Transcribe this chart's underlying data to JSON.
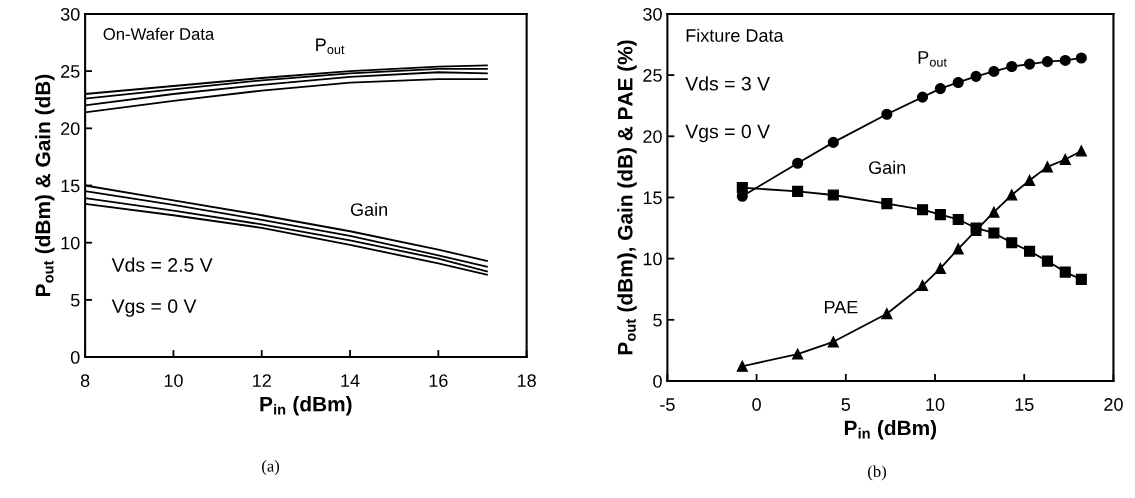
{
  "chart_data": [
    {
      "type": "line",
      "xlabel": "P$_{in}$ (dBm)",
      "ylabel": "P$_{out}$ (dBm) & Gain (dB)",
      "x": [
        8,
        10,
        12,
        14,
        16,
        17.1
      ],
      "xlim": [
        8,
        18
      ],
      "xticks": [
        8,
        10,
        12,
        14,
        16,
        18
      ],
      "ylim": [
        0,
        30
      ],
      "yticks": [
        0,
        5,
        10,
        15,
        20,
        25,
        30
      ],
      "grid": false,
      "series": [
        {
          "color": "#000000",
          "values": [
            23.0,
            23.7,
            24.4,
            25.0,
            25.4,
            25.5
          ]
        },
        {
          "color": "#000000",
          "values": [
            22.6,
            23.4,
            24.2,
            24.8,
            25.2,
            25.2
          ]
        },
        {
          "color": "#000000",
          "values": [
            22.0,
            23.0,
            23.8,
            24.5,
            24.9,
            24.8
          ]
        },
        {
          "color": "#000000",
          "values": [
            21.4,
            22.4,
            23.3,
            24.0,
            24.3,
            24.3
          ]
        },
        {
          "color": "#000000",
          "values": [
            15.0,
            13.7,
            12.4,
            11.0,
            9.4,
            8.4
          ]
        },
        {
          "color": "#000000",
          "values": [
            14.5,
            13.3,
            12.0,
            10.6,
            8.9,
            7.9
          ]
        },
        {
          "color": "#000000",
          "values": [
            13.9,
            12.8,
            11.6,
            10.2,
            8.6,
            7.5
          ]
        },
        {
          "color": "#000000",
          "values": [
            13.4,
            12.4,
            11.3,
            9.8,
            8.2,
            7.2
          ]
        }
      ],
      "annotations": [
        "On-Wafer Data",
        "P$_{out}$",
        "Gain",
        "Vds = 2.5 V",
        "Vgs = 0 V",
        "(a)"
      ]
    },
    {
      "type": "line",
      "xlabel": "P$_{in}$ (dBm)",
      "ylabel": "P$_{out}$ (dBm), Gain (dB) & PAE (%)",
      "x": [
        -0.8,
        2.3,
        4.3,
        7.3,
        9.3,
        10.3,
        11.3,
        12.3,
        13.3,
        14.3,
        15.3,
        16.3,
        17.3,
        18.2
      ],
      "xlim": [
        -5,
        20
      ],
      "xticks": [
        -5,
        0,
        5,
        10,
        15,
        20
      ],
      "ylim": [
        0,
        30
      ],
      "yticks": [
        0,
        5,
        10,
        15,
        20,
        25,
        30
      ],
      "grid": false,
      "series": [
        {
          "color": "#000000",
          "marker": "circle",
          "values": [
            15.1,
            17.8,
            19.5,
            21.8,
            23.2,
            23.9,
            24.4,
            24.9,
            25.3,
            25.7,
            25.9,
            26.1,
            26.2,
            26.4
          ]
        },
        {
          "color": "#000000",
          "marker": "square",
          "values": [
            15.8,
            15.5,
            15.2,
            14.5,
            14.0,
            13.6,
            13.2,
            12.5,
            12.1,
            11.3,
            10.6,
            9.8,
            8.9,
            8.3
          ]
        },
        {
          "color": "#000000",
          "marker": "triangle",
          "values": [
            1.2,
            2.2,
            3.2,
            5.5,
            7.8,
            9.2,
            10.8,
            12.3,
            13.8,
            15.2,
            16.4,
            17.5,
            18.1,
            18.8
          ]
        }
      ],
      "annotations": [
        "Fixture Data",
        "Vds = 3 V",
        "Vgs = 0 V",
        "P$_{out}$",
        "Gain",
        "PAE",
        "(b)"
      ]
    }
  ]
}
